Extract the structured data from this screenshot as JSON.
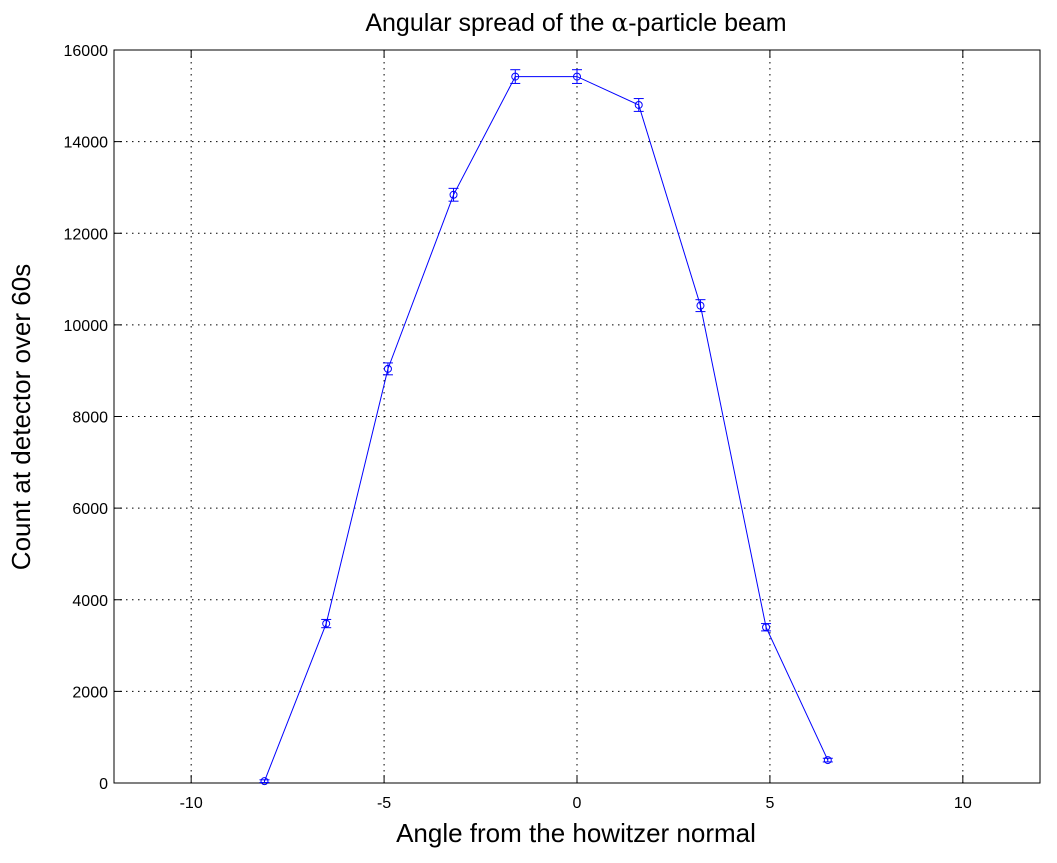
{
  "chart_data": {
    "type": "line",
    "title_text": "Angular spread of the ",
    "title_symbol": "α",
    "title_suffix": "-particle beam",
    "xlabel": "Angle from the howitzer normal",
    "ylabel": "Count at detector over 60s",
    "xlim": [
      -12,
      12
    ],
    "ylim": [
      0,
      16000
    ],
    "xticks": [
      -10,
      -5,
      0,
      5,
      10
    ],
    "yticks": [
      0,
      2000,
      4000,
      6000,
      8000,
      10000,
      12000,
      14000,
      16000
    ],
    "grid": true,
    "series": [
      {
        "color": "#0000ff",
        "marker": "circle",
        "x": [
          -8.1,
          -6.5,
          -4.9,
          -3.2,
          -1.6,
          0,
          1.6,
          3.2,
          4.9,
          6.5
        ],
        "y": [
          40,
          3480,
          9040,
          12840,
          15420,
          15420,
          14800,
          10420,
          3400,
          500
        ],
        "error": [
          30,
          90,
          130,
          140,
          150,
          150,
          140,
          130,
          80,
          40
        ]
      }
    ]
  }
}
